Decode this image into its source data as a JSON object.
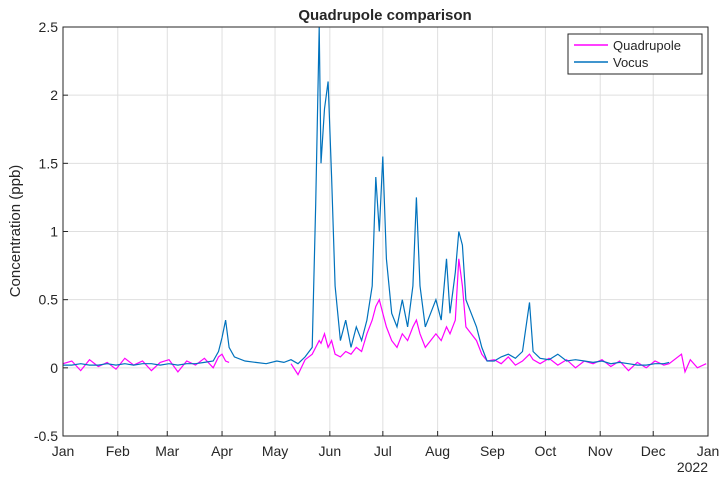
{
  "chart_data": {
    "type": "line",
    "title": "Quadrupole comparison",
    "y_label": "Concentration (ppb)",
    "x_year_label": "2022",
    "x": [
      "2022-01-01",
      "2022-01-06",
      "2022-01-11",
      "2022-01-16",
      "2022-01-21",
      "2022-01-26",
      "2022-01-31",
      "2022-02-05",
      "2022-02-10",
      "2022-02-15",
      "2022-02-20",
      "2022-02-25",
      "2022-03-02",
      "2022-03-07",
      "2022-03-12",
      "2022-03-17",
      "2022-03-22",
      "2022-03-27",
      "2022-03-30",
      "2022-04-01",
      "2022-04-03",
      "2022-04-05",
      "2022-04-08",
      "2022-04-14",
      "2022-04-20",
      "2022-04-26",
      "2022-05-02",
      "2022-05-06",
      "2022-05-10",
      "2022-05-14",
      "2022-05-18",
      "2022-05-22",
      "2022-05-24",
      "2022-05-26",
      "2022-05-27",
      "2022-05-29",
      "2022-05-31",
      "2022-06-02",
      "2022-06-04",
      "2022-06-07",
      "2022-06-10",
      "2022-06-13",
      "2022-06-16",
      "2022-06-19",
      "2022-06-22",
      "2022-06-25",
      "2022-06-27",
      "2022-06-29",
      "2022-07-01",
      "2022-07-03",
      "2022-07-06",
      "2022-07-09",
      "2022-07-12",
      "2022-07-15",
      "2022-07-18",
      "2022-07-20",
      "2022-07-22",
      "2022-07-25",
      "2022-07-28",
      "2022-07-31",
      "2022-08-03",
      "2022-08-06",
      "2022-08-08",
      "2022-08-11",
      "2022-08-13",
      "2022-08-15",
      "2022-08-17",
      "2022-08-20",
      "2022-08-23",
      "2022-08-26",
      "2022-08-29",
      "2022-09-02",
      "2022-09-06",
      "2022-09-10",
      "2022-09-14",
      "2022-09-18",
      "2022-09-22",
      "2022-09-24",
      "2022-09-28",
      "2022-10-03",
      "2022-10-08",
      "2022-10-13",
      "2022-10-18",
      "2022-10-23",
      "2022-10-28",
      "2022-11-02",
      "2022-11-07",
      "2022-11-12",
      "2022-11-17",
      "2022-11-22",
      "2022-11-27",
      "2022-12-02",
      "2022-12-07",
      "2022-12-10",
      "2022-12-17",
      "2022-12-19",
      "2022-12-22",
      "2022-12-26",
      "2022-12-31"
    ],
    "series": [
      {
        "name": "Quadrupole",
        "color": "#ff00ff",
        "values": [
          0.03,
          0.05,
          -0.02,
          0.06,
          0.01,
          0.04,
          -0.01,
          0.07,
          0.02,
          0.05,
          -0.02,
          0.04,
          0.06,
          -0.03,
          0.05,
          0.02,
          0.07,
          0.0,
          0.08,
          0.1,
          0.05,
          0.04,
          null,
          null,
          null,
          null,
          null,
          null,
          0.03,
          -0.05,
          0.06,
          0.1,
          0.15,
          0.2,
          0.18,
          0.25,
          0.15,
          0.2,
          0.1,
          0.08,
          0.12,
          0.1,
          0.15,
          0.12,
          0.25,
          0.35,
          0.45,
          0.5,
          0.4,
          0.3,
          0.2,
          0.15,
          0.25,
          0.2,
          0.3,
          0.35,
          0.25,
          0.15,
          0.2,
          0.25,
          0.2,
          0.3,
          0.25,
          0.35,
          0.8,
          0.6,
          0.3,
          0.25,
          0.2,
          0.1,
          0.05,
          0.06,
          0.03,
          0.08,
          0.02,
          0.05,
          0.1,
          0.06,
          0.03,
          0.07,
          0.02,
          0.06,
          0.0,
          0.05,
          0.03,
          0.06,
          0.01,
          0.05,
          -0.02,
          0.04,
          0.0,
          0.05,
          0.02,
          0.03,
          0.1,
          -0.03,
          0.06,
          0.0,
          0.03
        ]
      },
      {
        "name": "Vocus",
        "color": "#0072bd",
        "values": [
          0.02,
          0.02,
          0.03,
          0.02,
          0.02,
          0.03,
          0.02,
          0.03,
          0.02,
          0.03,
          0.03,
          0.02,
          0.03,
          0.02,
          0.03,
          0.03,
          0.04,
          0.05,
          0.12,
          0.22,
          0.35,
          0.15,
          0.08,
          0.05,
          0.04,
          0.03,
          0.05,
          0.04,
          0.06,
          0.03,
          0.08,
          0.15,
          1.2,
          2.5,
          1.5,
          1.9,
          2.1,
          1.4,
          0.6,
          0.2,
          0.35,
          0.15,
          0.3,
          0.2,
          0.35,
          0.6,
          1.4,
          1.0,
          1.55,
          0.8,
          0.4,
          0.3,
          0.5,
          0.3,
          0.6,
          1.25,
          0.6,
          0.3,
          0.4,
          0.5,
          0.35,
          0.8,
          0.4,
          0.7,
          1.0,
          0.9,
          0.5,
          0.4,
          0.3,
          0.15,
          0.05,
          0.05,
          0.08,
          0.1,
          0.07,
          0.12,
          0.48,
          0.12,
          0.07,
          0.06,
          0.1,
          0.05,
          0.06,
          0.05,
          0.04,
          0.05,
          0.03,
          0.04,
          0.03,
          0.02,
          0.02,
          0.03,
          0.03,
          0.04,
          null,
          null,
          null,
          null,
          null
        ]
      }
    ],
    "xlim": [
      "2022-01-01",
      "2023-01-01"
    ],
    "xticks": [
      {
        "value": "2022-01-01",
        "label": "Jan"
      },
      {
        "value": "2022-02-01",
        "label": "Feb"
      },
      {
        "value": "2022-03-01",
        "label": "Mar"
      },
      {
        "value": "2022-04-01",
        "label": "Apr"
      },
      {
        "value": "2022-05-01",
        "label": "May"
      },
      {
        "value": "2022-06-01",
        "label": "Jun"
      },
      {
        "value": "2022-07-01",
        "label": "Jul"
      },
      {
        "value": "2022-08-01",
        "label": "Aug"
      },
      {
        "value": "2022-09-01",
        "label": "Sep"
      },
      {
        "value": "2022-10-01",
        "label": "Oct"
      },
      {
        "value": "2022-11-01",
        "label": "Nov"
      },
      {
        "value": "2022-12-01",
        "label": "Dec"
      },
      {
        "value": "2023-01-01",
        "label": "Jan"
      }
    ],
    "ylim": [
      -0.5,
      2.5
    ],
    "yticks": [
      -0.5,
      0,
      0.5,
      1,
      1.5,
      2,
      2.5
    ],
    "grid": true,
    "legend": "northeast"
  }
}
